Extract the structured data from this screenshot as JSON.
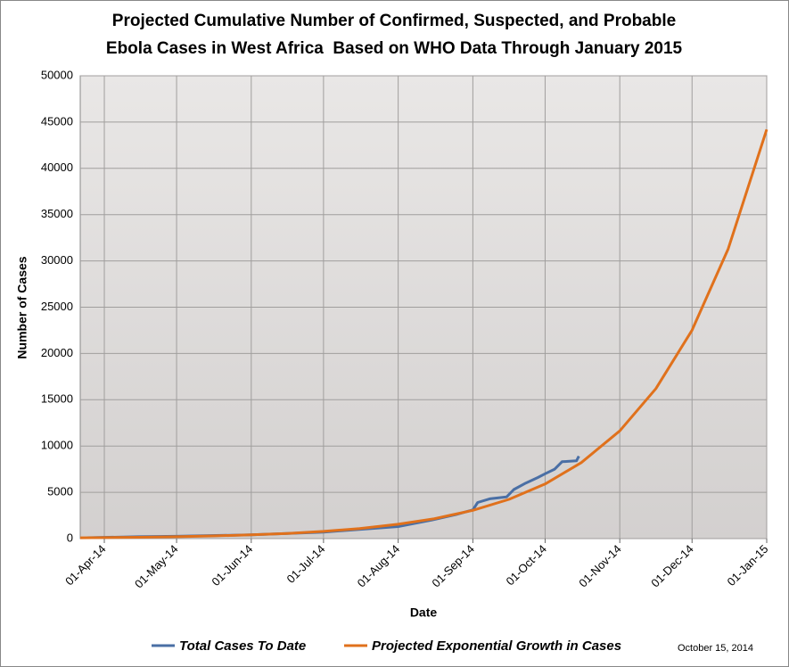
{
  "chart_data": {
    "type": "line",
    "title": [
      "Projected Cumulative Number of Confirmed, Suspected, and Probable",
      "Ebola Cases in West Africa  Based on WHO Data Through January 2015"
    ],
    "xlabel": "Date",
    "ylabel": "Number of Cases",
    "annotation": "October 15, 2014",
    "xlim": [
      "2014-03-22",
      "2015-01-01"
    ],
    "xticks": [
      {
        "value": "2014-04-01",
        "label": "01-Apr-14"
      },
      {
        "value": "2014-05-01",
        "label": "01-May-14"
      },
      {
        "value": "2014-06-01",
        "label": "01-Jun-14"
      },
      {
        "value": "2014-07-01",
        "label": "01-Jul-14"
      },
      {
        "value": "2014-08-01",
        "label": "01-Aug-14"
      },
      {
        "value": "2014-09-01",
        "label": "01-Sep-14"
      },
      {
        "value": "2014-10-01",
        "label": "01-Oct-14"
      },
      {
        "value": "2014-11-01",
        "label": "01-Nov-14"
      },
      {
        "value": "2014-12-01",
        "label": "01-Dec-14"
      },
      {
        "value": "2015-01-01",
        "label": "01-Jan-15"
      }
    ],
    "ylim": [
      0,
      50000
    ],
    "yticks": [
      0,
      5000,
      10000,
      15000,
      20000,
      25000,
      30000,
      35000,
      40000,
      45000,
      50000
    ],
    "grid": true,
    "series": [
      {
        "name": "Total Cases To Date",
        "color": "#4a6fa5",
        "x": [
          "2014-03-25",
          "2014-04-15",
          "2014-05-01",
          "2014-06-01",
          "2014-07-01",
          "2014-08-01",
          "2014-08-15",
          "2014-08-25",
          "2014-09-01",
          "2014-09-03",
          "2014-09-08",
          "2014-09-15",
          "2014-09-18",
          "2014-09-23",
          "2014-09-28",
          "2014-10-01",
          "2014-10-05",
          "2014-10-08",
          "2014-10-14",
          "2014-10-15"
        ],
        "values": [
          100,
          200,
          250,
          400,
          700,
          1300,
          2000,
          2600,
          3100,
          3900,
          4300,
          4500,
          5300,
          6000,
          6600,
          7000,
          7500,
          8300,
          8400,
          8900
        ]
      },
      {
        "name": "Projected Exponential Growth in Cases",
        "color": "#e0711c",
        "x": [
          "2014-03-22",
          "2014-04-01",
          "2014-04-16",
          "2014-05-01",
          "2014-05-16",
          "2014-06-01",
          "2014-06-16",
          "2014-07-01",
          "2014-07-16",
          "2014-08-01",
          "2014-08-16",
          "2014-09-01",
          "2014-09-16",
          "2014-10-01",
          "2014-10-16",
          "2014-11-01",
          "2014-11-16",
          "2014-12-01",
          "2014-12-16",
          "2015-01-01"
        ],
        "values": [
          86,
          107,
          148,
          206,
          286,
          405,
          563,
          784,
          1090,
          1550,
          2150,
          3050,
          4240,
          5900,
          8210,
          11640,
          16200,
          22500,
          31300,
          44200
        ]
      }
    ]
  }
}
